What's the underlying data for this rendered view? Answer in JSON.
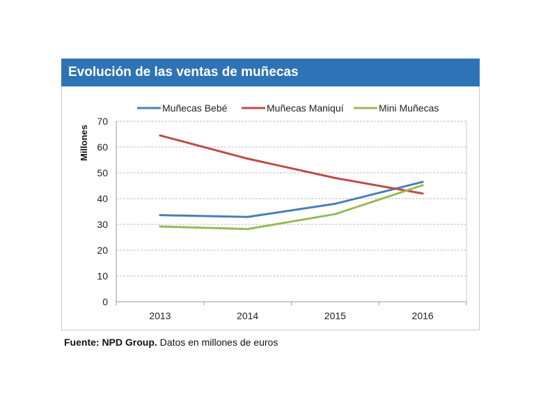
{
  "chart_data": {
    "type": "line",
    "title": "Evolución de las ventas de muñecas",
    "xlabel": "",
    "ylabel": "Millones",
    "categories": [
      "2013",
      "2014",
      "2015",
      "2016"
    ],
    "ylim": [
      0,
      70
    ],
    "yticks": [
      0,
      10,
      20,
      30,
      40,
      50,
      60,
      70
    ],
    "grid": true,
    "legend": "top",
    "series": [
      {
        "name": "Muñecas Bebé",
        "color": "#4a7ebb",
        "values": [
          33.6,
          32.9,
          38,
          46.5
        ]
      },
      {
        "name": "Muñecas Maniquí",
        "color": "#be4b48",
        "values": [
          64.5,
          55.5,
          48,
          42
        ]
      },
      {
        "name": "Mini Muñecas",
        "color": "#98b954",
        "values": [
          29.2,
          28.2,
          34,
          45.2
        ]
      }
    ]
  },
  "footer": {
    "source_label": "Fuente: NPD Group.",
    "note": " Datos en millones de euros"
  }
}
